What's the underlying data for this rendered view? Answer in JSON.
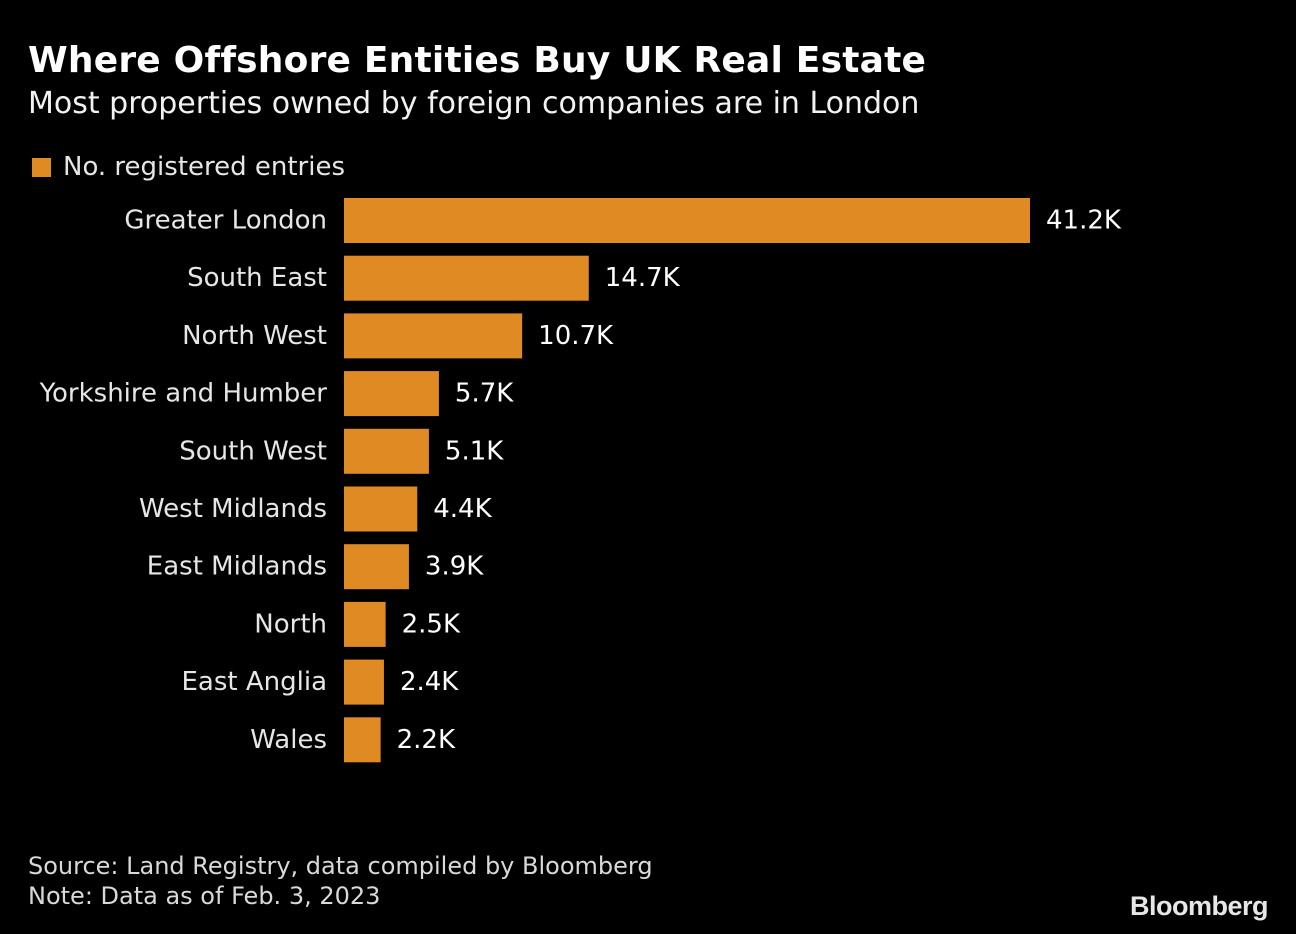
{
  "header": {
    "title": "Where Offshore Entities Buy UK Real Estate",
    "subtitle": "Most properties owned by foreign companies are in London"
  },
  "legend": {
    "label": "No. registered entries"
  },
  "colors": {
    "bar": "#e08a24",
    "background": "#000000"
  },
  "chart_data": {
    "type": "bar",
    "orientation": "horizontal",
    "title": "Where Offshore Entities Buy UK Real Estate",
    "subtitle": "Most properties owned by foreign companies are in London",
    "categories": [
      "Greater London",
      "South East",
      "North West",
      "Yorkshire and Humber",
      "South West",
      "West Midlands",
      "East Midlands",
      "North",
      "East Anglia",
      "Wales"
    ],
    "series": [
      {
        "name": "No. registered entries",
        "values": [
          41200,
          14700,
          10700,
          5700,
          5100,
          4400,
          3900,
          2500,
          2400,
          2200
        ],
        "labels": [
          "41.2K",
          "14.7K",
          "10.7K",
          "5.7K",
          "5.1K",
          "4.4K",
          "3.9K",
          "2.5K",
          "2.4K",
          "2.2K"
        ]
      }
    ],
    "xlim": [
      0,
      41200
    ],
    "xlabel": "",
    "ylabel": "",
    "grid": false,
    "legend_position": "top-left"
  },
  "footer": {
    "source": "Source: Land Registry, data compiled by Bloomberg",
    "note": "Note: Data as of Feb. 3, 2023",
    "brand": "Bloomberg"
  }
}
